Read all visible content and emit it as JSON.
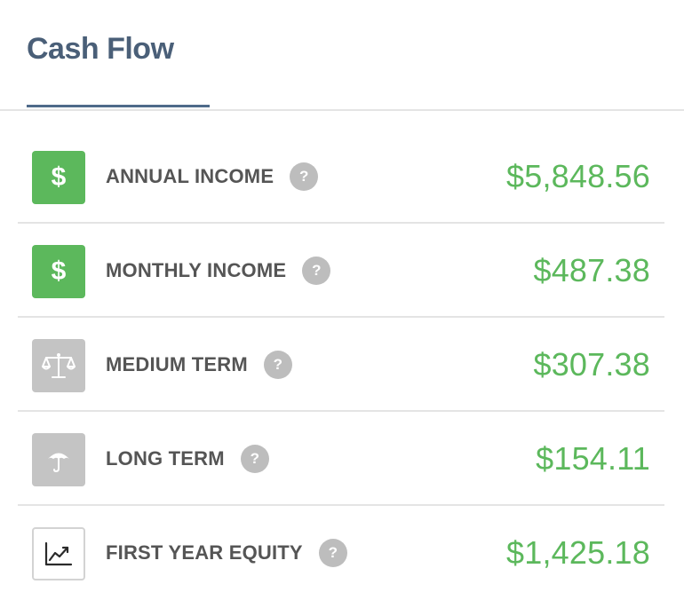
{
  "header": {
    "title": "Cash Flow"
  },
  "colors": {
    "accent_green": "#5cb85c",
    "title_color": "#4a5f78",
    "icon_gray": "#c4c4c4",
    "help_gray": "#bdbdbd"
  },
  "rows": [
    {
      "label": "ANNUAL INCOME",
      "value": "$5,848.56",
      "icon": "dollar-icon",
      "help": "?"
    },
    {
      "label": "MONTHLY INCOME",
      "value": "$487.38",
      "icon": "dollar-icon",
      "help": "?"
    },
    {
      "label": "MEDIUM TERM",
      "value": "$307.38",
      "icon": "scale-icon",
      "help": "?"
    },
    {
      "label": "LONG TERM",
      "value": "$154.11",
      "icon": "umbrella-icon",
      "help": "?"
    },
    {
      "label": "FIRST YEAR EQUITY",
      "value": "$1,425.18",
      "icon": "trend-chart-icon",
      "help": "?"
    }
  ],
  "icons": {
    "dollar_glyph": "$"
  }
}
